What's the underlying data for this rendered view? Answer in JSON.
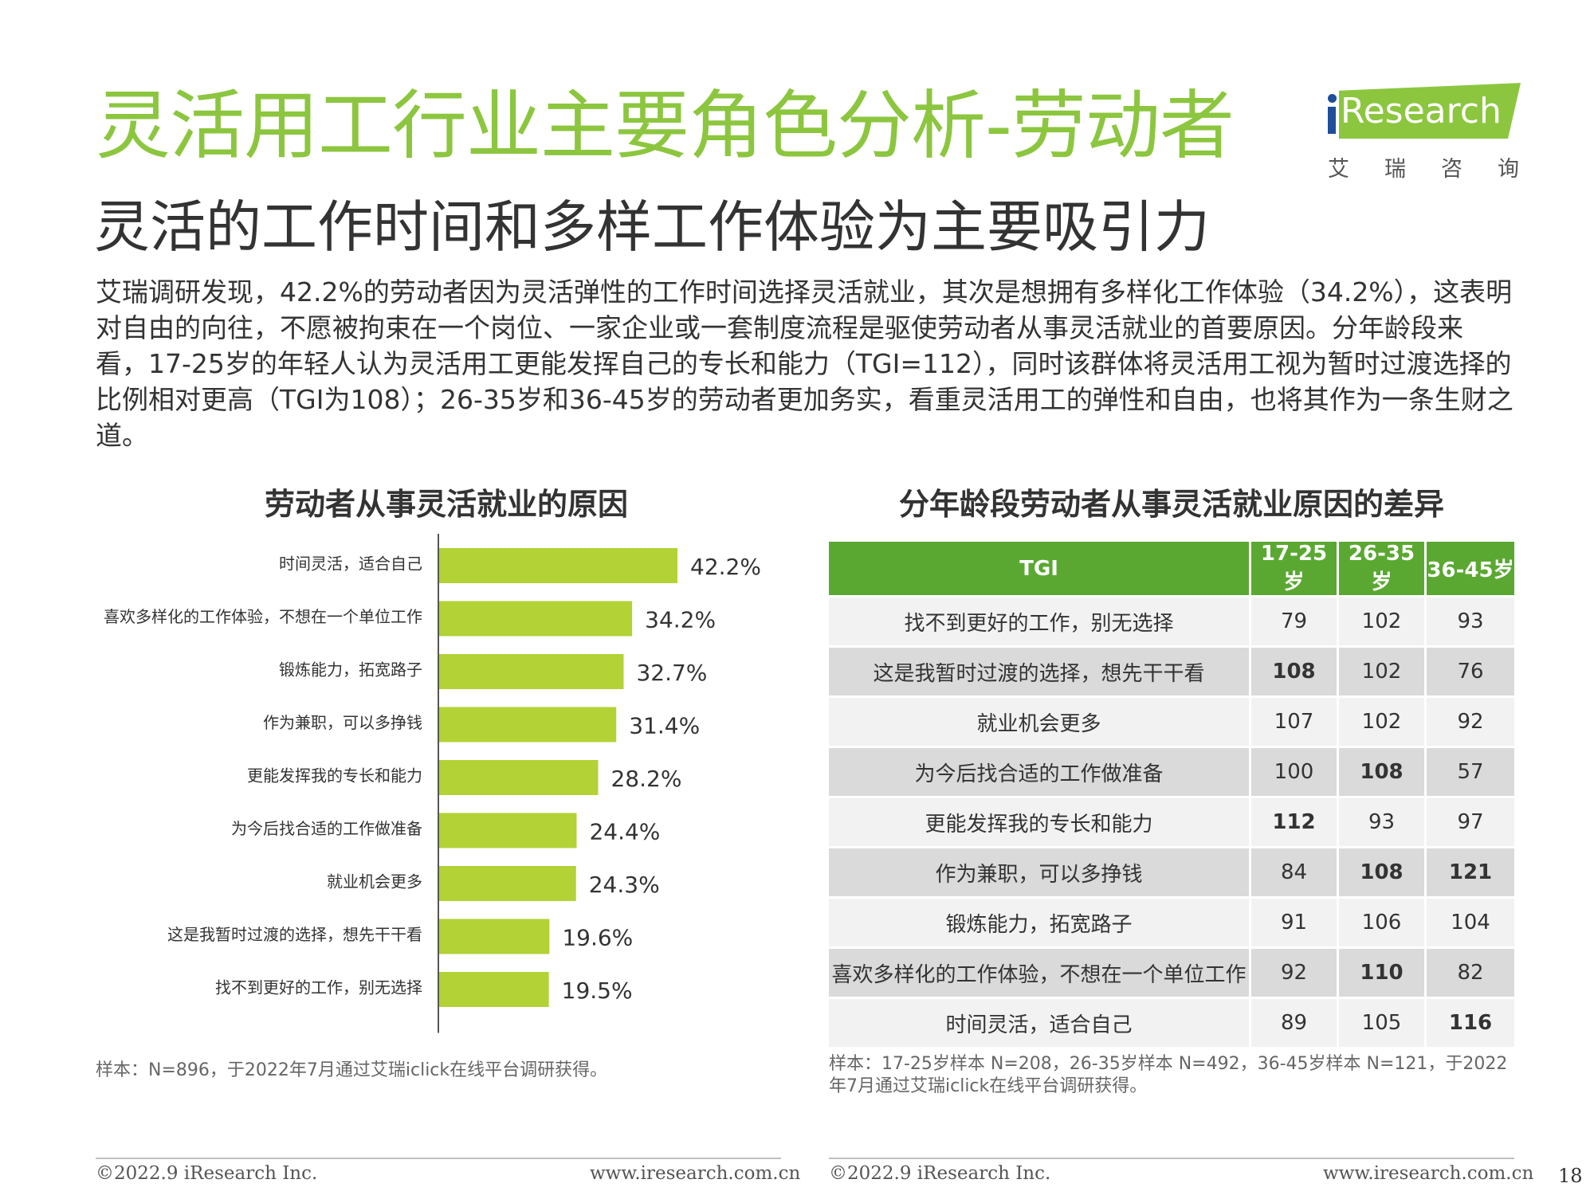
{
  "header": {
    "title": "灵活用工行业主要角色分析-劳动者",
    "subtitle": "灵活的工作时间和多样工作体验为主要吸引力",
    "intro": "艾瑞调研发现，42.2%的劳动者因为灵活弹性的工作时间选择灵活就业，其次是想拥有多样化工作体验（34.2%），这表明对自由的向往，不愿被拘束在一个岗位、一家企业或一套制度流程是驱使劳动者从事灵活就业的首要原因。分年龄段来看，17-25岁的年轻人认为灵活用工更能发挥自己的专长和能力（TGI=112），同时该群体将灵活用工视为暂时过渡选择的比例相对更高（TGI为108）；26-35岁和36-45岁的劳动者更加务实，看重灵活用工的弹性和自由，也将其作为一条生财之道。"
  },
  "logo": {
    "text": "Research",
    "cn": [
      "艾",
      "瑞",
      "咨",
      "询"
    ],
    "band_color": "#8cc63f",
    "i_color": "#1f4e9a"
  },
  "chart_data": [
    {
      "type": "bar",
      "orientation": "horizontal",
      "title": "劳动者从事灵活就业的原因",
      "categories": [
        "时间灵活，适合自己",
        "喜欢多样化的工作体验，不想在一个单位工作",
        "锻炼能力，拓宽路子",
        "作为兼职，可以多挣钱",
        "更能发挥我的专长和能力",
        "为今后找合适的工作做准备",
        "就业机会更多",
        "这是我暂时过渡的选择，想先干干看",
        "找不到更好的工作，别无选择"
      ],
      "values": [
        42.2,
        34.2,
        32.7,
        31.4,
        28.2,
        24.4,
        24.3,
        19.6,
        19.5
      ],
      "value_labels": [
        "42.2%",
        "34.2%",
        "32.7%",
        "31.4%",
        "28.2%",
        "24.4%",
        "24.3%",
        "19.6%",
        "19.5%"
      ],
      "xlim": [
        0,
        42.2
      ],
      "bar_color": "#b2d235",
      "grid": false,
      "note": "样本：N=896，于2022年7月通过艾瑞iclick在线平台调研获得。"
    },
    {
      "type": "table",
      "title": "分年龄段劳动者从事灵活就业原因的差异",
      "header": [
        "TGI",
        "17-25岁",
        "26-35岁",
        "36-45岁"
      ],
      "header_color": "#5aa832",
      "rows": [
        {
          "label": "找不到更好的工作，别无选择",
          "values": [
            "79",
            "102",
            "93"
          ],
          "bold": [
            false,
            false,
            false
          ]
        },
        {
          "label": "这是我暂时过渡的选择，想先干干看",
          "values": [
            "108",
            "102",
            "76"
          ],
          "bold": [
            true,
            false,
            false
          ]
        },
        {
          "label": "就业机会更多",
          "values": [
            "107",
            "102",
            "92"
          ],
          "bold": [
            false,
            false,
            false
          ]
        },
        {
          "label": "为今后找合适的工作做准备",
          "values": [
            "100",
            "108",
            "57"
          ],
          "bold": [
            false,
            true,
            false
          ]
        },
        {
          "label": "更能发挥我的专长和能力",
          "values": [
            "112",
            "93",
            "97"
          ],
          "bold": [
            true,
            false,
            false
          ]
        },
        {
          "label": "作为兼职，可以多挣钱",
          "values": [
            "84",
            "108",
            "121"
          ],
          "bold": [
            false,
            true,
            true
          ]
        },
        {
          "label": "锻炼能力，拓宽路子",
          "values": [
            "91",
            "106",
            "104"
          ],
          "bold": [
            false,
            false,
            false
          ]
        },
        {
          "label": "喜欢多样化的工作体验，不想在一个单位工作",
          "values": [
            "92",
            "110",
            "82"
          ],
          "bold": [
            false,
            true,
            false
          ]
        },
        {
          "label": "时间灵活，适合自己",
          "values": [
            "89",
            "105",
            "116"
          ],
          "bold": [
            false,
            false,
            true
          ]
        }
      ],
      "note": "样本：17-25岁样本 N=208，26-35岁样本 N=492，36-45岁样本 N=121，于2022年7月通过艾瑞iclick在线平台调研获得。"
    }
  ],
  "footer": {
    "left_copyright": "©2022.9 iResearch Inc.",
    "left_url": "www.iresearch.com.cn",
    "right_copyright": "©2022.9 iResearch Inc.",
    "right_url": "www.iresearch.com.cn",
    "page_number": "18"
  }
}
